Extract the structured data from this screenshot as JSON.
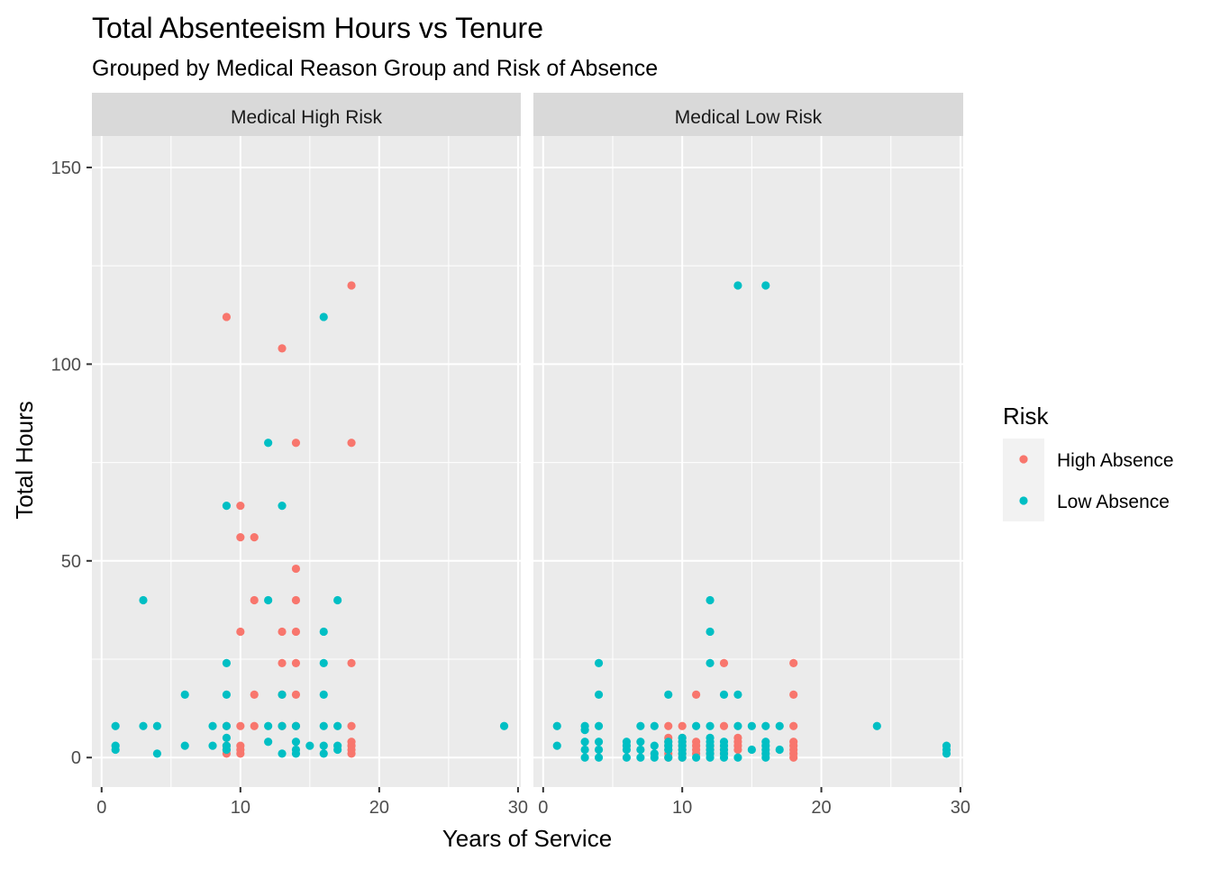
{
  "chart_data": {
    "type": "scatter",
    "title": "Total Absenteeism Hours vs Tenure",
    "subtitle": "Grouped by Medical Reason Group and Risk of Absence",
    "xlabel": "Years of Service",
    "ylabel": "Total Hours",
    "xlim": [
      -0.7,
      30.2
    ],
    "ylim": [
      -7.5,
      158
    ],
    "x_ticks": [
      0,
      10,
      20,
      30
    ],
    "y_ticks": [
      0,
      50,
      100,
      150
    ],
    "x_tick_labels": [
      "0",
      "10",
      "20",
      "30"
    ],
    "y_tick_labels": [
      "0",
      "50",
      "100",
      "150"
    ],
    "grid": true,
    "legend": {
      "title": "Risk",
      "placement": "right",
      "entries": [
        {
          "label": "High Absence",
          "color": "#F8766D"
        },
        {
          "label": "Low Absence",
          "color": "#00BFC4"
        }
      ]
    },
    "facets": [
      {
        "label": "Medical High Risk",
        "series": [
          {
            "name": "High Absence",
            "color": "#F8766D",
            "points": [
              [
                9,
                112
              ],
              [
                9,
                8
              ],
              [
                9,
                3
              ],
              [
                9,
                2
              ],
              [
                9,
                1
              ],
              [
                10,
                64
              ],
              [
                10,
                56
              ],
              [
                10,
                32
              ],
              [
                10,
                8
              ],
              [
                10,
                3
              ],
              [
                10,
                2
              ],
              [
                10,
                1
              ],
              [
                11,
                56
              ],
              [
                11,
                40
              ],
              [
                11,
                16
              ],
              [
                11,
                8
              ],
              [
                13,
                104
              ],
              [
                13,
                32
              ],
              [
                13,
                24
              ],
              [
                13,
                16
              ],
              [
                13,
                8
              ],
              [
                14,
                80
              ],
              [
                14,
                48
              ],
              [
                14,
                40
              ],
              [
                14,
                32
              ],
              [
                14,
                24
              ],
              [
                14,
                16
              ],
              [
                14,
                8
              ],
              [
                18,
                120
              ],
              [
                18,
                80
              ],
              [
                18,
                24
              ],
              [
                18,
                8
              ],
              [
                18,
                4
              ],
              [
                18,
                3
              ],
              [
                18,
                2
              ],
              [
                18,
                1
              ]
            ]
          },
          {
            "name": "Low Absence",
            "color": "#00BFC4",
            "points": [
              [
                1,
                8
              ],
              [
                1,
                3
              ],
              [
                1,
                2
              ],
              [
                3,
                40
              ],
              [
                3,
                8
              ],
              [
                4,
                8
              ],
              [
                4,
                1
              ],
              [
                6,
                16
              ],
              [
                6,
                3
              ],
              [
                8,
                8
              ],
              [
                8,
                3
              ],
              [
                9,
                64
              ],
              [
                9,
                24
              ],
              [
                9,
                16
              ],
              [
                9,
                8
              ],
              [
                9,
                5
              ],
              [
                9,
                3
              ],
              [
                9,
                2
              ],
              [
                12,
                80
              ],
              [
                12,
                40
              ],
              [
                12,
                8
              ],
              [
                12,
                4
              ],
              [
                13,
                64
              ],
              [
                13,
                16
              ],
              [
                13,
                8
              ],
              [
                13,
                1
              ],
              [
                14,
                8
              ],
              [
                14,
                4
              ],
              [
                14,
                2
              ],
              [
                14,
                1
              ],
              [
                15,
                3
              ],
              [
                16,
                112
              ],
              [
                16,
                32
              ],
              [
                16,
                24
              ],
              [
                16,
                16
              ],
              [
                16,
                8
              ],
              [
                16,
                3
              ],
              [
                16,
                1
              ],
              [
                17,
                40
              ],
              [
                17,
                8
              ],
              [
                17,
                3
              ],
              [
                17,
                2
              ],
              [
                29,
                8
              ]
            ]
          }
        ]
      },
      {
        "label": "Medical Low Risk",
        "series": [
          {
            "name": "High Absence",
            "color": "#F8766D",
            "points": [
              [
                9,
                8
              ],
              [
                9,
                5
              ],
              [
                9,
                4
              ],
              [
                9,
                3
              ],
              [
                9,
                2
              ],
              [
                9,
                1
              ],
              [
                9,
                0
              ],
              [
                10,
                8
              ],
              [
                10,
                5
              ],
              [
                10,
                4
              ],
              [
                10,
                3
              ],
              [
                10,
                2
              ],
              [
                10,
                1
              ],
              [
                10,
                0
              ],
              [
                11,
                16
              ],
              [
                11,
                4
              ],
              [
                11,
                3
              ],
              [
                11,
                2
              ],
              [
                11,
                1
              ],
              [
                12,
                3
              ],
              [
                12,
                2
              ],
              [
                12,
                1
              ],
              [
                13,
                24
              ],
              [
                13,
                8
              ],
              [
                13,
                2
              ],
              [
                13,
                1
              ],
              [
                14,
                5
              ],
              [
                14,
                4
              ],
              [
                14,
                3
              ],
              [
                14,
                2
              ],
              [
                18,
                24
              ],
              [
                18,
                16
              ],
              [
                18,
                8
              ],
              [
                18,
                4
              ],
              [
                18,
                3
              ],
              [
                18,
                2
              ],
              [
                18,
                1
              ],
              [
                18,
                0
              ]
            ]
          },
          {
            "name": "Low Absence",
            "color": "#00BFC4",
            "points": [
              [
                1,
                8
              ],
              [
                1,
                3
              ],
              [
                3,
                8
              ],
              [
                3,
                7
              ],
              [
                3,
                4
              ],
              [
                3,
                2
              ],
              [
                3,
                0
              ],
              [
                4,
                24
              ],
              [
                4,
                16
              ],
              [
                4,
                8
              ],
              [
                4,
                4
              ],
              [
                4,
                2
              ],
              [
                4,
                0
              ],
              [
                6,
                4
              ],
              [
                6,
                3
              ],
              [
                6,
                2
              ],
              [
                6,
                0
              ],
              [
                7,
                8
              ],
              [
                7,
                4
              ],
              [
                7,
                2
              ],
              [
                7,
                0
              ],
              [
                8,
                8
              ],
              [
                8,
                3
              ],
              [
                8,
                1
              ],
              [
                8,
                0
              ],
              [
                9,
                16
              ],
              [
                9,
                4
              ],
              [
                9,
                3
              ],
              [
                9,
                2
              ],
              [
                9,
                0
              ],
              [
                10,
                5
              ],
              [
                10,
                4
              ],
              [
                10,
                3
              ],
              [
                10,
                2
              ],
              [
                10,
                1
              ],
              [
                10,
                0
              ],
              [
                11,
                8
              ],
              [
                11,
                0
              ],
              [
                12,
                40
              ],
              [
                12,
                32
              ],
              [
                12,
                24
              ],
              [
                12,
                8
              ],
              [
                12,
                5
              ],
              [
                12,
                4
              ],
              [
                12,
                3
              ],
              [
                12,
                2
              ],
              [
                12,
                1
              ],
              [
                12,
                0
              ],
              [
                13,
                16
              ],
              [
                13,
                4
              ],
              [
                13,
                3
              ],
              [
                13,
                2
              ],
              [
                13,
                1
              ],
              [
                13,
                0
              ],
              [
                14,
                120
              ],
              [
                14,
                16
              ],
              [
                14,
                8
              ],
              [
                14,
                0
              ],
              [
                15,
                8
              ],
              [
                15,
                2
              ],
              [
                16,
                120
              ],
              [
                16,
                8
              ],
              [
                16,
                4
              ],
              [
                16,
                3
              ],
              [
                16,
                2
              ],
              [
                16,
                1
              ],
              [
                16,
                0
              ],
              [
                17,
                8
              ],
              [
                17,
                2
              ],
              [
                24,
                8
              ],
              [
                29,
                3
              ],
              [
                29,
                2
              ],
              [
                29,
                1
              ]
            ]
          }
        ]
      }
    ]
  }
}
